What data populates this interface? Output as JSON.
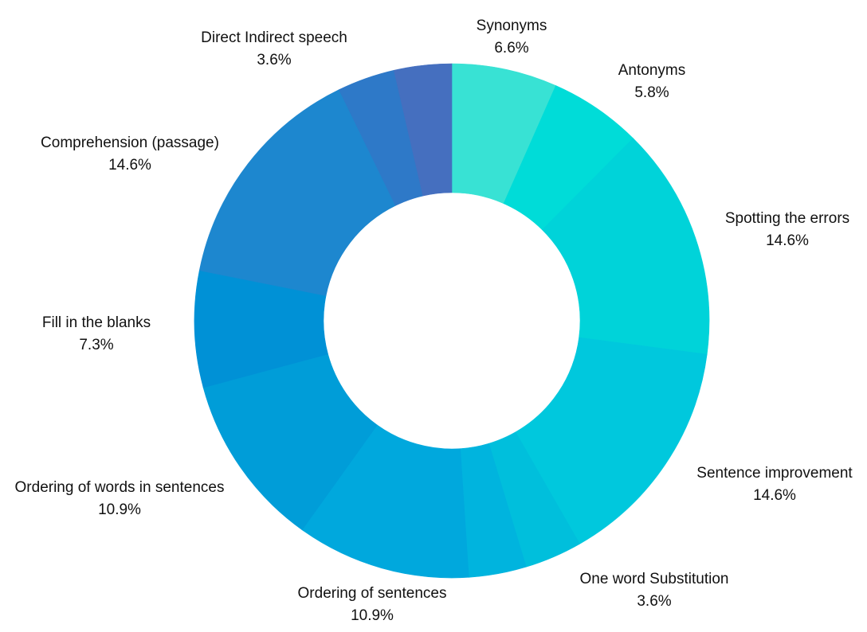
{
  "chart_data": {
    "type": "pie",
    "variant": "donut",
    "title": "",
    "start_angle_deg": 0,
    "direction": "clockwise",
    "slices": [
      {
        "name": "Synonyms",
        "value": 6.6,
        "value_label": "6.6%",
        "color": "#38e2d4"
      },
      {
        "name": "Antonyms",
        "value": 5.8,
        "value_label": "5.8%",
        "color": "#00dcd8"
      },
      {
        "name": "Spotting the errors",
        "value": 14.6,
        "value_label": "14.6%",
        "color": "#00d3d9"
      },
      {
        "name": "Sentence improvement",
        "value": 14.6,
        "value_label": "14.6%",
        "color": "#00c8dd"
      },
      {
        "name": "One word Substitution",
        "value": 3.6,
        "value_label": "3.6%",
        "color": "#00bfdc"
      },
      {
        "name": "",
        "value": 3.6,
        "value_label": "",
        "color": "#00b4de"
      },
      {
        "name": "Ordering of sentences",
        "value": 10.9,
        "value_label": "10.9%",
        "color": "#00a8dd"
      },
      {
        "name": "Ordering of words in sentences",
        "value": 10.9,
        "value_label": "10.9%",
        "color": "#009dd8"
      },
      {
        "name": "Fill in the blanks",
        "value": 7.3,
        "value_label": "7.3%",
        "color": "#0091d6"
      },
      {
        "name": "Comprehension (passage)",
        "value": 14.6,
        "value_label": "14.6%",
        "color": "#1d87cf"
      },
      {
        "name": "",
        "value": 3.6,
        "value_label": "",
        "color": "#2e79c8"
      },
      {
        "name": "Direct Indirect speech",
        "value": 3.6,
        "value_label": "3.6%",
        "color": "#456fbf"
      }
    ]
  }
}
